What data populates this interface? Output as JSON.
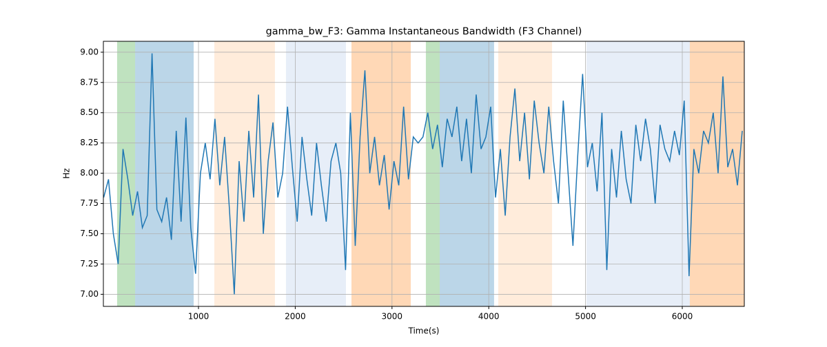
{
  "chart_data": {
    "type": "line",
    "title": "gamma_bw_F3: Gamma Instantaneous Bandwidth (F3 Channel)",
    "x_label": "Time(s)",
    "y_label": "Hz",
    "xlim": [
      17,
      6641
    ],
    "ylim": [
      6.9,
      9.09
    ],
    "xticks": [
      1000,
      2000,
      3000,
      4000,
      5000,
      6000
    ],
    "yticks": [
      {
        "value": 7,
        "label": "7.00"
      },
      {
        "value": 7.25,
        "label": "7.25"
      },
      {
        "value": 7.5,
        "label": "7.50"
      },
      {
        "value": 7.75,
        "label": "7.75"
      },
      {
        "value": 8,
        "label": "8.00"
      },
      {
        "value": 8.25,
        "label": "8.25"
      },
      {
        "value": 8.5,
        "label": "8.50"
      },
      {
        "value": 8.75,
        "label": "8.75"
      },
      {
        "value": 9,
        "label": "9.00"
      }
    ],
    "grid": true,
    "spans": [
      {
        "x": [
          159,
          345
        ],
        "color": "#2ca02c",
        "opacity": 0.3
      },
      {
        "x": [
          345,
          950
        ],
        "color": "#1f77b4",
        "opacity": 0.3
      },
      {
        "x": [
          1164,
          1790
        ],
        "color": "#ff7f0e",
        "opacity": 0.15
      },
      {
        "x": [
          1904,
          2524
        ],
        "color": "#aec7e8",
        "opacity": 0.3
      },
      {
        "x": [
          2581,
          3194
        ],
        "color": "#ff7f0e",
        "opacity": 0.3
      },
      {
        "x": [
          3350,
          3493
        ],
        "color": "#2ca02c",
        "opacity": 0.3
      },
      {
        "x": [
          3493,
          4055
        ],
        "color": "#1f77b4",
        "opacity": 0.3
      },
      {
        "x": [
          4098,
          4654
        ],
        "color": "#ff7f0e",
        "opacity": 0.15
      },
      {
        "x": [
          5010,
          6078
        ],
        "color": "#aec7e8",
        "opacity": 0.3
      },
      {
        "x": [
          6078,
          6641
        ],
        "color": "#ff7f0e",
        "opacity": 0.3
      }
    ],
    "x": [
      20,
      70,
      120,
      170,
      220,
      270,
      320,
      370,
      420,
      470,
      520,
      570,
      620,
      670,
      720,
      770,
      820,
      870,
      920,
      970,
      1020,
      1070,
      1120,
      1170,
      1220,
      1270,
      1320,
      1370,
      1420,
      1470,
      1520,
      1570,
      1620,
      1670,
      1720,
      1770,
      1820,
      1870,
      1920,
      1970,
      2020,
      2070,
      2120,
      2170,
      2220,
      2270,
      2320,
      2370,
      2420,
      2470,
      2520,
      2570,
      2620,
      2670,
      2720,
      2770,
      2820,
      2870,
      2920,
      2970,
      3020,
      3070,
      3120,
      3170,
      3220,
      3270,
      3320,
      3370,
      3420,
      3470,
      3520,
      3570,
      3620,
      3670,
      3720,
      3770,
      3820,
      3870,
      3920,
      3970,
      4020,
      4070,
      4120,
      4170,
      4220,
      4270,
      4320,
      4370,
      4420,
      4470,
      4520,
      4570,
      4620,
      4670,
      4720,
      4770,
      4820,
      4870,
      4920,
      4970,
      5020,
      5070,
      5120,
      5170,
      5220,
      5270,
      5320,
      5370,
      5420,
      5470,
      5520,
      5570,
      5620,
      5670,
      5720,
      5770,
      5820,
      5870,
      5920,
      5970,
      6020,
      6070,
      6120,
      6170,
      6220,
      6270,
      6320,
      6370,
      6420,
      6470,
      6520,
      6570,
      6620
    ],
    "series": [
      {
        "name": "gamma_bw_F3",
        "color": "#1f77b4",
        "values": [
          7.8,
          7.95,
          7.5,
          7.25,
          8.2,
          7.95,
          7.65,
          7.85,
          7.55,
          7.65,
          8.99,
          7.7,
          7.6,
          7.8,
          7.45,
          8.35,
          7.6,
          8.46,
          7.55,
          7.17,
          8.0,
          8.25,
          7.95,
          8.45,
          7.9,
          8.3,
          7.7,
          7.0,
          8.1,
          7.6,
          8.35,
          7.8,
          8.65,
          7.5,
          8.1,
          8.42,
          7.8,
          8.0,
          8.55,
          8.05,
          7.6,
          8.3,
          7.95,
          7.65,
          8.25,
          7.9,
          7.6,
          8.1,
          8.25,
          8.0,
          7.2,
          8.5,
          7.4,
          8.3,
          8.85,
          8.0,
          8.3,
          7.9,
          8.15,
          7.7,
          8.1,
          7.9,
          8.55,
          7.95,
          8.3,
          8.25,
          8.3,
          8.5,
          8.2,
          8.4,
          8.05,
          8.45,
          8.3,
          8.55,
          8.1,
          8.45,
          8.0,
          8.65,
          8.2,
          8.3,
          8.55,
          7.8,
          8.2,
          7.65,
          8.3,
          8.7,
          8.1,
          8.5,
          7.95,
          8.6,
          8.25,
          8.0,
          8.55,
          8.1,
          7.75,
          8.6,
          8.0,
          7.4,
          8.15,
          8.82,
          8.05,
          8.25,
          7.85,
          8.5,
          7.2,
          8.2,
          7.8,
          8.35,
          7.95,
          7.75,
          8.4,
          8.1,
          8.45,
          8.2,
          7.75,
          8.4,
          8.2,
          8.1,
          8.35,
          8.15,
          8.6,
          7.15,
          8.2,
          8.0,
          8.35,
          8.25,
          8.5,
          8.0,
          8.8,
          8.05,
          8.2,
          7.9,
          8.35
        ]
      }
    ]
  }
}
